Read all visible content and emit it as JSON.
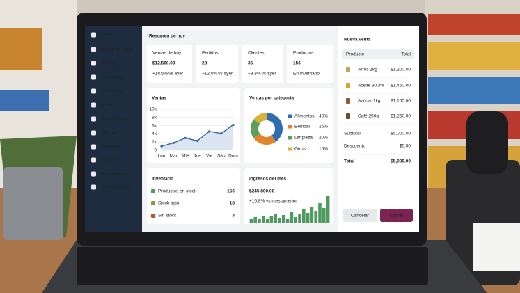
{
  "sidebar": {
    "items": [
      "Inicio",
      "Punto de Venta",
      "Ventas",
      "Productos",
      "Inventario",
      "Facturación",
      "Contabilidad",
      "Gastos",
      "Reportes",
      "Clientes",
      "Proveedores",
      "Configuración"
    ]
  },
  "summary": {
    "title": "Resumen de hoy",
    "cards": [
      {
        "label": "Ventas de hoy",
        "value": "$12,560.00",
        "change": "+18.5%",
        "note": "vs ayer"
      },
      {
        "label": "Pedidos",
        "value": "28",
        "change": "+12.0%",
        "note": "vs ayer"
      },
      {
        "label": "Clientes",
        "value": "35",
        "change": "+9.3%",
        "note": "vs ayer"
      },
      {
        "label": "Productos",
        "value": "156",
        "note": "En inventario"
      }
    ]
  },
  "chart_data": [
    {
      "type": "line",
      "title": "Ventas",
      "categories": [
        "Lun",
        "Mar",
        "Mié",
        "Jue",
        "Vie",
        "Sáb",
        "Dom"
      ],
      "values": [
        1000,
        1800,
        3000,
        2300,
        4600,
        4100,
        6200
      ],
      "color": "#2f5f9e",
      "ylim": [
        0,
        10000
      ],
      "yticks": [
        0,
        {
          "value": 2000,
          "label": "2k"
        },
        {
          "value": 4000,
          "label": "4k"
        },
        {
          "value": 6000,
          "label": "6k"
        },
        {
          "value": 8000,
          "label": "8k"
        },
        {
          "value": 10000,
          "label": "10k"
        }
      ],
      "grid": true
    },
    {
      "type": "pie",
      "title": "Ventas por categoría",
      "categories": [
        "Alimentos",
        "Bebidas",
        "Limpieza",
        "Otros"
      ],
      "values": [
        40,
        25,
        20,
        15
      ],
      "value_labels": [
        "40%",
        "25%",
        "20%",
        "15%"
      ],
      "colors": [
        "#2f6db0",
        "#e0842e",
        "#5c9e5a",
        "#d8b23a"
      ]
    },
    {
      "type": "bar",
      "title": "Ingresos del mes",
      "value": "$245,800.00",
      "change": "+16.8% vs mes anterior",
      "values": [
        6,
        9,
        7,
        11,
        6,
        10,
        13,
        8,
        12,
        7,
        16,
        9,
        13,
        21,
        15,
        24,
        18,
        30,
        22,
        40
      ],
      "ylim": [
        0,
        40
      ],
      "color": "#4e9a5f"
    }
  ],
  "inventory": {
    "title": "Inventario",
    "rows": [
      {
        "label": "Productos en stock",
        "value": 156,
        "color": "#4e9a5f"
      },
      {
        "label": "Stock bajo",
        "value": 18,
        "color": "#8a9a3a"
      },
      {
        "label": "Sin stock",
        "value": 3,
        "color": "#c94a3c"
      }
    ]
  },
  "sale": {
    "title": "Nueva venta",
    "header": [
      "Producto",
      "Total"
    ],
    "items": [
      [
        "Arroz 1kg",
        "$1,200.00"
      ],
      [
        "Aceite 900ml",
        "$1,450.00"
      ],
      [
        "Azúcar 1kg",
        "$1,100.00"
      ],
      [
        "Café 250g",
        "$1,250.00"
      ]
    ],
    "subtotal": [
      "Subtotal",
      "$5,000.00"
    ],
    "discount": [
      "Descuento",
      "$0.00"
    ],
    "total": [
      "Total",
      "$5,000.00"
    ],
    "buttons": [
      "Cancelar",
      "Cobrar"
    ]
  }
}
